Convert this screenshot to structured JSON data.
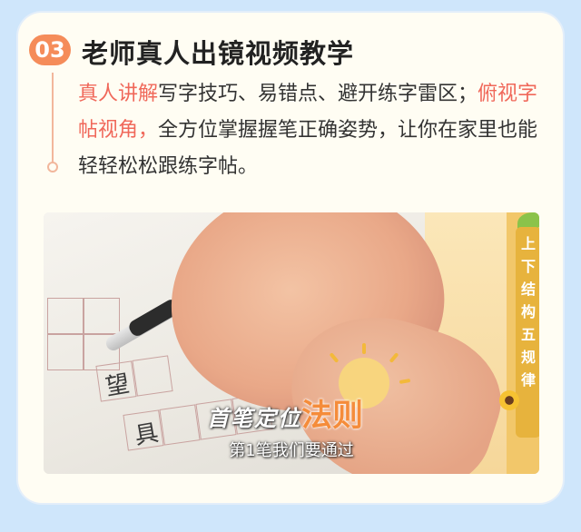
{
  "section": {
    "number": "03",
    "title": "老师真人出镜视频教学"
  },
  "description": {
    "segments": [
      {
        "text": "真人讲解",
        "highlight": true
      },
      {
        "text": "写字技巧、易错点、避开练字雷区；",
        "highlight": false
      },
      {
        "text": "俯视字帖视角，",
        "highlight": true
      },
      {
        "text": "全方位掌握握笔正确姿势，让你在家里也能轻轻松松跟练字帖。",
        "highlight": false
      }
    ]
  },
  "video": {
    "side_tag": [
      "上",
      "下",
      "结",
      "构",
      "五",
      "规",
      "律"
    ],
    "caption_left": "首笔定位",
    "caption_right": "法则",
    "subtitle": "第1笔我们要通过",
    "sheet_chars": [
      "望",
      "具"
    ]
  },
  "colors": {
    "accent": "#f58c5a",
    "highlight": "#f0685a",
    "card_bg": "#fffdf3",
    "page_bg": "#cfe6fb",
    "tag_bg": "#e7b33d"
  }
}
